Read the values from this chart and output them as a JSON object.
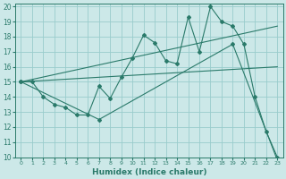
{
  "xlabel": "Humidex (Indice chaleur)",
  "bg_color": "#cce8e8",
  "grid_color": "#99cccc",
  "line_color": "#2a7a6a",
  "xlim": [
    -0.5,
    23.5
  ],
  "ylim": [
    10,
    20.2
  ],
  "xticks": [
    0,
    1,
    2,
    3,
    4,
    5,
    6,
    7,
    8,
    9,
    10,
    11,
    12,
    13,
    14,
    15,
    16,
    17,
    18,
    19,
    20,
    21,
    22,
    23
  ],
  "yticks": [
    10,
    11,
    12,
    13,
    14,
    15,
    16,
    17,
    18,
    19,
    20
  ],
  "series_main": {
    "x": [
      0,
      1,
      2,
      3,
      4,
      5,
      6,
      7,
      8,
      9,
      10,
      11,
      12,
      13,
      14,
      15,
      16,
      17,
      18,
      19,
      20,
      21,
      22,
      23
    ],
    "y": [
      15,
      15,
      14,
      13.5,
      13.3,
      12.8,
      12.8,
      14.7,
      13.9,
      15.3,
      16.6,
      18.1,
      17.6,
      16.4,
      16.2,
      19.3,
      17.0,
      20.0,
      19.0,
      18.7,
      17.5,
      14.0,
      11.7,
      10.0
    ]
  },
  "series_low": {
    "x": [
      0,
      7,
      19,
      23
    ],
    "y": [
      15,
      12.5,
      17.5,
      9.8
    ]
  },
  "series_line1": {
    "x": [
      0,
      23
    ],
    "y": [
      15.0,
      18.7
    ]
  },
  "series_line2": {
    "x": [
      0,
      23
    ],
    "y": [
      15.0,
      16.0
    ]
  }
}
